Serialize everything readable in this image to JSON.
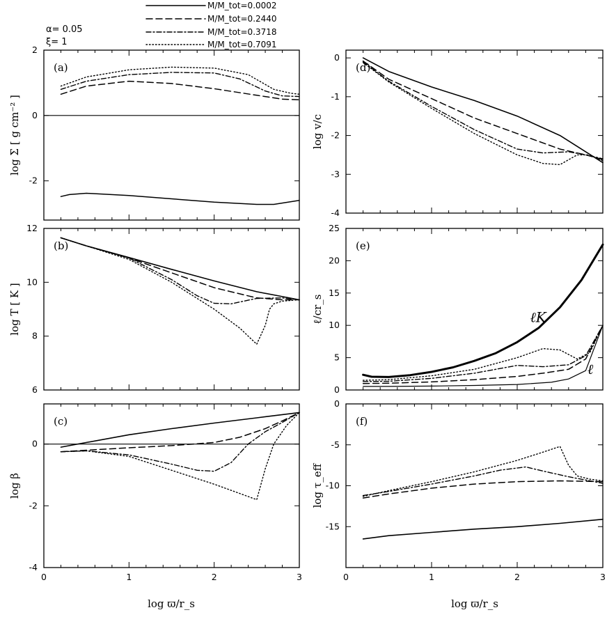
{
  "figure": {
    "params": [
      "α= 0.05",
      "ξ= 1"
    ],
    "legend": [
      {
        "label": "M/M_tot=0.0002",
        "style": "solid"
      },
      {
        "label": "M/M_tot=0.2440",
        "style": "dashed"
      },
      {
        "label": "M/M_tot=0.3718",
        "style": "dashdot"
      },
      {
        "label": "M/M_tot=0.7091",
        "style": "dotted"
      }
    ],
    "xlabel_left": "log ϖ/r_s",
    "xlabel_right": "log ϖ/r_s"
  },
  "chart_data": [
    {
      "id": "a",
      "type": "line",
      "tag": "(a)",
      "ylabel": "log Σ [ g cm⁻² ]",
      "xlabel": "log ϖ/r_s",
      "xlim": [
        0,
        3
      ],
      "ylim": [
        -3.2,
        2
      ],
      "yticks": [
        2,
        0,
        -2
      ],
      "xticks": [
        0,
        1,
        2,
        3
      ],
      "zero_line": true,
      "series": [
        {
          "name": "M/M_tot=0.0002",
          "style": "solid",
          "width": 1.5,
          "x": [
            0.2,
            0.3,
            0.5,
            1.0,
            1.5,
            2.0,
            2.5,
            2.7,
            3.0
          ],
          "y": [
            -2.48,
            -2.42,
            -2.38,
            -2.45,
            -2.55,
            -2.65,
            -2.72,
            -2.72,
            -2.6
          ]
        },
        {
          "name": "M/M_tot=0.2440",
          "style": "dashed",
          "width": 1.5,
          "x": [
            0.2,
            0.5,
            1.0,
            1.5,
            2.0,
            2.5,
            2.8,
            3.0
          ],
          "y": [
            0.65,
            0.9,
            1.05,
            0.98,
            0.82,
            0.62,
            0.5,
            0.48
          ]
        },
        {
          "name": "M/M_tot=0.3718",
          "style": "dashdot",
          "width": 1.4,
          "x": [
            0.2,
            0.5,
            1.0,
            1.5,
            2.0,
            2.3,
            2.6,
            2.8,
            3.0
          ],
          "y": [
            0.8,
            1.05,
            1.25,
            1.32,
            1.3,
            1.12,
            0.75,
            0.6,
            0.58
          ]
        },
        {
          "name": "M/M_tot=0.7091",
          "style": "dotted",
          "width": 1.4,
          "x": [
            0.2,
            0.5,
            1.0,
            1.5,
            2.0,
            2.4,
            2.7,
            2.9,
            3.0
          ],
          "y": [
            0.9,
            1.18,
            1.4,
            1.48,
            1.45,
            1.25,
            0.8,
            0.68,
            0.65
          ]
        }
      ]
    },
    {
      "id": "b",
      "type": "line",
      "tag": "(b)",
      "ylabel": "log T [ K ]",
      "xlabel": "log ϖ/r_s",
      "xlim": [
        0,
        3
      ],
      "ylim": [
        6,
        12
      ],
      "yticks": [
        12,
        10,
        8,
        6
      ],
      "xticks": [
        0,
        1,
        2,
        3
      ],
      "zero_line": false,
      "series": [
        {
          "name": "M/M_tot=0.0002",
          "style": "solid",
          "width": 1.6,
          "x": [
            0.2,
            0.5,
            1.0,
            1.5,
            2.0,
            2.5,
            3.0
          ],
          "y": [
            11.65,
            11.35,
            10.92,
            10.48,
            10.05,
            9.65,
            9.35
          ]
        },
        {
          "name": "M/M_tot=0.2440",
          "style": "dashed",
          "width": 1.5,
          "x": [
            0.2,
            0.5,
            1.0,
            1.5,
            2.0,
            2.5,
            2.8,
            3.0
          ],
          "y": [
            11.65,
            11.35,
            10.9,
            10.35,
            9.8,
            9.42,
            9.35,
            9.35
          ]
        },
        {
          "name": "M/M_tot=0.3718",
          "style": "dashdot",
          "width": 1.4,
          "x": [
            0.2,
            0.5,
            1.0,
            1.5,
            1.8,
            2.0,
            2.2,
            2.5,
            2.8,
            3.0
          ],
          "y": [
            11.65,
            11.35,
            10.9,
            10.1,
            9.5,
            9.22,
            9.2,
            9.4,
            9.42,
            9.35
          ]
        },
        {
          "name": "M/M_tot=0.7091",
          "style": "dotted",
          "width": 1.4,
          "x": [
            0.2,
            0.5,
            1.0,
            1.5,
            2.0,
            2.3,
            2.5,
            2.6,
            2.65,
            2.7,
            2.8,
            3.0
          ],
          "y": [
            11.65,
            11.35,
            10.85,
            10.0,
            9.0,
            8.3,
            7.7,
            8.4,
            9.0,
            9.2,
            9.3,
            9.35
          ]
        }
      ]
    },
    {
      "id": "c",
      "type": "line",
      "tag": "(c)",
      "ylabel": "log β",
      "xlabel": "log ϖ/r_s",
      "xlim": [
        0,
        3
      ],
      "ylim": [
        -4,
        1.3
      ],
      "yticks": [
        0,
        -2,
        -4
      ],
      "xticks": [
        0,
        1,
        2,
        3
      ],
      "zero_line": true,
      "series": [
        {
          "name": "M/M_tot=0.0002",
          "style": "solid",
          "width": 1.6,
          "x": [
            0.2,
            0.5,
            1.0,
            1.5,
            2.0,
            2.5,
            3.0
          ],
          "y": [
            -0.1,
            0.05,
            0.3,
            0.5,
            0.68,
            0.85,
            1.02
          ]
        },
        {
          "name": "M/M_tot=0.2440",
          "style": "dashed",
          "width": 1.5,
          "x": [
            0.2,
            0.5,
            1.0,
            1.5,
            2.0,
            2.3,
            2.6,
            2.8,
            3.0
          ],
          "y": [
            -0.25,
            -0.2,
            -0.12,
            -0.05,
            0.05,
            0.22,
            0.5,
            0.75,
            1.02
          ]
        },
        {
          "name": "M/M_tot=0.3718",
          "style": "dashdot",
          "width": 1.4,
          "x": [
            0.2,
            0.5,
            1.0,
            1.5,
            1.8,
            2.0,
            2.2,
            2.4,
            2.6,
            2.8,
            3.0
          ],
          "y": [
            -0.25,
            -0.22,
            -0.35,
            -0.65,
            -0.85,
            -0.88,
            -0.6,
            0.0,
            0.4,
            0.7,
            1.02
          ]
        },
        {
          "name": "M/M_tot=0.7091",
          "style": "dotted",
          "width": 1.4,
          "x": [
            0.2,
            0.5,
            1.0,
            1.5,
            2.0,
            2.3,
            2.5,
            2.6,
            2.7,
            2.85,
            3.0
          ],
          "y": [
            -0.25,
            -0.22,
            -0.4,
            -0.85,
            -1.3,
            -1.6,
            -1.8,
            -0.8,
            0.0,
            0.6,
            1.02
          ]
        }
      ]
    },
    {
      "id": "d",
      "type": "line",
      "tag": "(d)",
      "ylabel": "log v/c",
      "xlabel": "log ϖ/r_s",
      "xlim": [
        0,
        3
      ],
      "ylim": [
        -4,
        0.2
      ],
      "yticks": [
        0,
        -1,
        -2,
        -3,
        -4
      ],
      "xticks": [
        0,
        1,
        2,
        3
      ],
      "zero_line": false,
      "series": [
        {
          "name": "M/M_tot=0.0002",
          "style": "solid",
          "width": 1.6,
          "x": [
            0.2,
            0.5,
            1.0,
            1.5,
            2.0,
            2.5,
            3.0
          ],
          "y": [
            0.0,
            -0.35,
            -0.75,
            -1.1,
            -1.5,
            -2.0,
            -2.7
          ]
        },
        {
          "name": "M/M_tot=0.2440",
          "style": "dashed",
          "width": 1.5,
          "x": [
            0.2,
            0.5,
            1.0,
            1.5,
            2.0,
            2.5,
            2.8,
            3.0
          ],
          "y": [
            -0.08,
            -0.55,
            -1.05,
            -1.55,
            -1.95,
            -2.35,
            -2.5,
            -2.62
          ]
        },
        {
          "name": "M/M_tot=0.3718",
          "style": "dashdot",
          "width": 1.4,
          "x": [
            0.2,
            0.5,
            1.0,
            1.5,
            2.0,
            2.3,
            2.6,
            2.8,
            3.0
          ],
          "y": [
            -0.1,
            -0.6,
            -1.25,
            -1.85,
            -2.35,
            -2.45,
            -2.42,
            -2.5,
            -2.6
          ]
        },
        {
          "name": "M/M_tot=0.7091",
          "style": "dotted",
          "width": 1.4,
          "x": [
            0.2,
            0.5,
            1.0,
            1.5,
            2.0,
            2.3,
            2.5,
            2.7,
            2.85,
            3.0
          ],
          "y": [
            -0.12,
            -0.62,
            -1.3,
            -1.95,
            -2.5,
            -2.72,
            -2.75,
            -2.5,
            -2.5,
            -2.65
          ]
        }
      ]
    },
    {
      "id": "e",
      "type": "line",
      "tag": "(e)",
      "ylabel": "ℓ/cr_s",
      "xlabel": "log ϖ/r_s",
      "xlim": [
        0,
        3
      ],
      "ylim": [
        0,
        25
      ],
      "yticks": [
        0,
        5,
        10,
        15,
        20,
        25
      ],
      "xticks": [
        0,
        1,
        2,
        3
      ],
      "zero_line": false,
      "annotations": [
        {
          "text": "ℓK",
          "x": 2.15,
          "y": 10.5
        },
        {
          "text": "ℓ",
          "x": 2.82,
          "y": 2.5
        }
      ],
      "series": [
        {
          "name": "ℓ_K",
          "style": "solid",
          "width": 3.0,
          "x": [
            0.2,
            0.3,
            0.5,
            0.75,
            1.0,
            1.25,
            1.5,
            1.75,
            2.0,
            2.25,
            2.5,
            2.75,
            3.0
          ],
          "y": [
            2.35,
            2.05,
            2.0,
            2.3,
            2.8,
            3.5,
            4.5,
            5.7,
            7.4,
            9.6,
            12.8,
            17.0,
            22.5
          ]
        },
        {
          "name": "M/M_tot=0.0002",
          "style": "solid",
          "width": 1.2,
          "x": [
            0.2,
            0.5,
            1.0,
            1.5,
            2.0,
            2.4,
            2.6,
            2.8,
            3.0
          ],
          "y": [
            0.55,
            0.55,
            0.6,
            0.7,
            0.85,
            1.2,
            1.7,
            3.0,
            10.0
          ]
        },
        {
          "name": "M/M_tot=0.2440",
          "style": "dashed",
          "width": 1.5,
          "x": [
            0.2,
            0.5,
            1.0,
            1.5,
            2.0,
            2.3,
            2.6,
            2.8,
            3.0
          ],
          "y": [
            1.0,
            1.05,
            1.25,
            1.6,
            2.1,
            2.6,
            3.2,
            4.8,
            10.0
          ]
        },
        {
          "name": "M/M_tot=0.3718",
          "style": "dashdot",
          "width": 1.4,
          "x": [
            0.2,
            0.5,
            1.0,
            1.5,
            2.0,
            2.3,
            2.6,
            2.8,
            3.0
          ],
          "y": [
            1.3,
            1.35,
            1.8,
            2.6,
            3.8,
            3.6,
            3.9,
            5.3,
            10.0
          ]
        },
        {
          "name": "M/M_tot=0.7091",
          "style": "dotted",
          "width": 1.4,
          "x": [
            0.2,
            0.5,
            1.0,
            1.5,
            2.0,
            2.3,
            2.5,
            2.7,
            2.85,
            3.0
          ],
          "y": [
            1.5,
            1.6,
            2.2,
            3.2,
            5.0,
            6.4,
            6.2,
            4.8,
            5.8,
            10.0
          ]
        }
      ]
    },
    {
      "id": "f",
      "type": "line",
      "tag": "(f)",
      "ylabel": "log τ_eff",
      "xlabel": "log ϖ/r_s",
      "xlim": [
        0,
        3
      ],
      "ylim": [
        -20,
        0
      ],
      "yticks": [
        0,
        -5,
        -10,
        -15
      ],
      "xticks": [
        0,
        1,
        2,
        3
      ],
      "zero_line": false,
      "series": [
        {
          "name": "M/M_tot=0.0002",
          "style": "solid",
          "width": 1.6,
          "x": [
            0.2,
            0.5,
            1.0,
            1.5,
            2.0,
            2.5,
            3.0
          ],
          "y": [
            -16.5,
            -16.1,
            -15.7,
            -15.3,
            -15.0,
            -14.6,
            -14.1
          ]
        },
        {
          "name": "M/M_tot=0.2440",
          "style": "dashed",
          "width": 1.5,
          "x": [
            0.2,
            0.5,
            1.0,
            1.5,
            2.0,
            2.5,
            3.0
          ],
          "y": [
            -11.5,
            -11.0,
            -10.3,
            -9.8,
            -9.5,
            -9.4,
            -9.5
          ]
        },
        {
          "name": "M/M_tot=0.3718",
          "style": "dashdot",
          "width": 1.4,
          "x": [
            0.2,
            0.5,
            1.0,
            1.5,
            1.8,
            2.1,
            2.3,
            2.6,
            3.0
          ],
          "y": [
            -11.2,
            -10.7,
            -9.8,
            -8.8,
            -8.1,
            -7.7,
            -8.2,
            -8.9,
            -9.7
          ]
        },
        {
          "name": "M/M_tot=0.7091",
          "style": "dotted",
          "width": 1.4,
          "x": [
            0.2,
            0.5,
            1.0,
            1.5,
            2.0,
            2.3,
            2.5,
            2.6,
            2.7,
            2.85,
            3.0
          ],
          "y": [
            -11.3,
            -10.6,
            -9.5,
            -8.3,
            -6.9,
            -5.9,
            -5.2,
            -7.5,
            -8.8,
            -9.2,
            -9.4
          ]
        }
      ]
    }
  ]
}
